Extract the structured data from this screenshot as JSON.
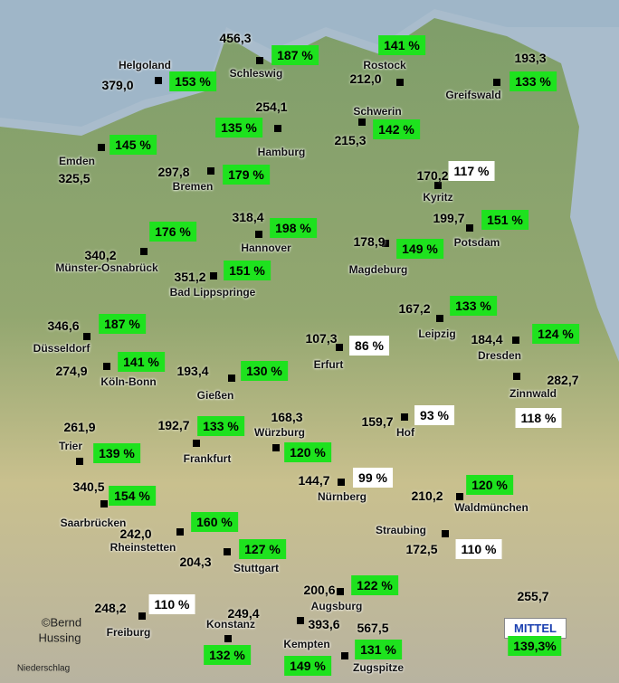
{
  "stations": [
    {
      "name": "Schleswig",
      "amount": "456,3",
      "percent": "187 %",
      "box": "#1ee21e"
    },
    {
      "name": "Rostock",
      "amount": "212,0",
      "percent": "141 %",
      "box": "#1ee21e"
    },
    {
      "name": "Greifswald",
      "amount": "193,3",
      "percent": "133 %",
      "box": "#1ee21e"
    },
    {
      "name": "Helgoland",
      "amount": "379,0",
      "percent": "153 %",
      "box": "#1ee21e"
    },
    {
      "name": "Hamburg",
      "amount": "254,1",
      "percent": "135 %",
      "box": "#1ee21e"
    },
    {
      "name": "Schwerin",
      "amount": "215,3",
      "percent": "142 %",
      "box": "#1ee21e"
    },
    {
      "name": "Emden",
      "amount": "325,5",
      "percent": "145 %",
      "box": "#1ee21e"
    },
    {
      "name": "Bremen",
      "amount": "297,8",
      "percent": "179 %",
      "box": "#1ee21e"
    },
    {
      "name": "Kyritz",
      "amount": "170,2",
      "percent": "117 %",
      "box": "#ffffff"
    },
    {
      "name": "Hannover",
      "amount": "318,4",
      "percent": "198 %",
      "box": "#1ee21e"
    },
    {
      "name": "Potsdam",
      "amount": "199,7",
      "percent": "151 %",
      "box": "#1ee21e"
    },
    {
      "name": "Münster-Osnabrück",
      "amount": "340,2",
      "percent": "176 %",
      "box": "#1ee21e"
    },
    {
      "name": "Magdeburg",
      "amount": "178,9",
      "percent": "149 %",
      "box": "#1ee21e"
    },
    {
      "name": "Bad Lippspringe",
      "amount": "351,2",
      "percent": "151 %",
      "box": "#1ee21e"
    },
    {
      "name": "Düsseldorf",
      "amount": "346,6",
      "percent": "187 %",
      "box": "#1ee21e"
    },
    {
      "name": "Leipzig",
      "amount": "167,2",
      "percent": "133 %",
      "box": "#1ee21e"
    },
    {
      "name": "Dresden",
      "amount": "184,4",
      "percent": "124 %",
      "box": "#1ee21e"
    },
    {
      "name": "Erfurt",
      "amount": "107,3",
      "percent": "86 %",
      "box": "#ffffff"
    },
    {
      "name": "Köln-Bonn",
      "amount": "274,9",
      "percent": "141 %",
      "box": "#1ee21e"
    },
    {
      "name": "Gießen",
      "amount": "193,4",
      "percent": "130 %",
      "box": "#1ee21e"
    },
    {
      "name": "Zinnwald",
      "amount": "282,7",
      "percent": "118 %",
      "box": "#ffffff"
    },
    {
      "name": "Hof",
      "amount": "159,7",
      "percent": "93 %",
      "box": "#ffffff"
    },
    {
      "name": "Würzburg",
      "amount": "168,3",
      "percent": "120 %",
      "box": "#1ee21e"
    },
    {
      "name": "Frankfurt",
      "amount": "192,7",
      "percent": "133 %",
      "box": "#1ee21e"
    },
    {
      "name": "Trier",
      "amount": "261,9",
      "percent": "139 %",
      "box": "#1ee21e"
    },
    {
      "name": "Nürnberg",
      "amount": "144,7",
      "percent": "99 %",
      "box": "#ffffff"
    },
    {
      "name": "Waldmünchen",
      "amount": "210,2",
      "percent": "120 %",
      "box": "#1ee21e"
    },
    {
      "name": "Saarbrücken",
      "amount": "340,5",
      "percent": "154 %",
      "box": "#1ee21e"
    },
    {
      "name": "Rheinstetten",
      "amount": "242,0",
      "percent": "160 %",
      "box": "#1ee21e"
    },
    {
      "name": "Straubing",
      "amount": "172,5",
      "percent": "110 %",
      "box": "#ffffff"
    },
    {
      "name": "Stuttgart",
      "amount": "204,3",
      "percent": "127 %",
      "box": "#1ee21e"
    },
    {
      "name": "Augsburg",
      "amount": "200,6",
      "percent": "122 %",
      "box": "#1ee21e"
    },
    {
      "name": "Freiburg",
      "amount": "248,2",
      "percent": "110 %",
      "box": "#ffffff"
    },
    {
      "name": "Konstanz",
      "amount": "249,4",
      "percent": "132 %",
      "box": "#1ee21e"
    },
    {
      "name": "Kempten",
      "amount": "393,6",
      "percent": "149 %",
      "box": "#1ee21e"
    },
    {
      "name": "Zugspitze",
      "amount": "567,5",
      "percent": "131 %",
      "box": "#1ee21e"
    }
  ],
  "mittel": {
    "label": "MITTEL",
    "amount": "255,7",
    "percent": "139,3%",
    "box": "#1ee21e"
  },
  "credit": [
    "©Bernd",
    "Hussing"
  ],
  "caption": "Niederschlag"
}
